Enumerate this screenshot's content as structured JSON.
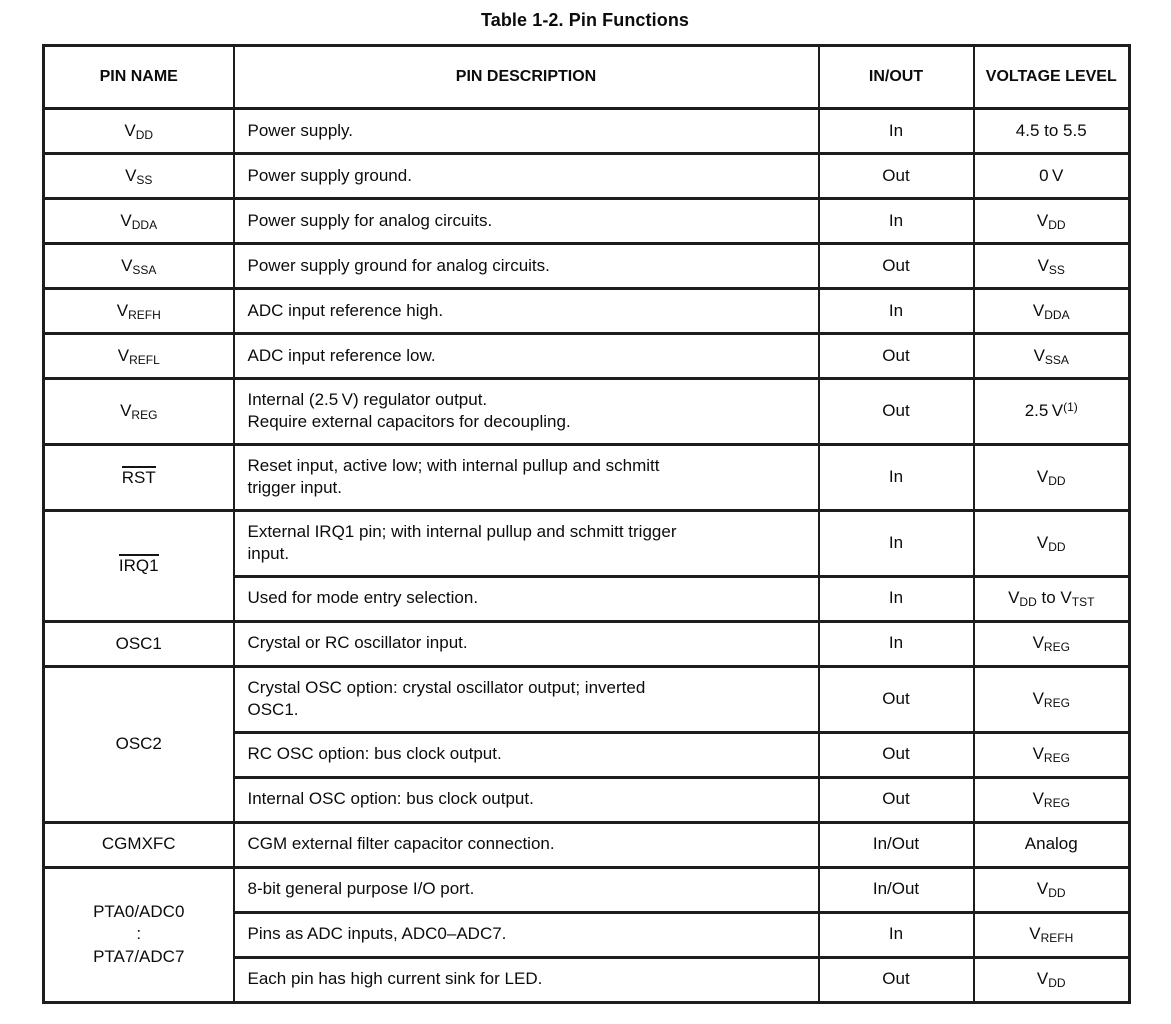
{
  "title": "Table 1-2. Pin Functions",
  "columns": [
    "PIN NAME",
    "PIN DESCRIPTION",
    "IN/OUT",
    "VOLTAGE LEVEL"
  ],
  "groups": [
    {
      "pin": [
        [
          {
            "t": "V"
          },
          {
            "t": "DD",
            "sub": true
          }
        ]
      ],
      "rows": [
        {
          "desc": "Power supply.",
          "io": "In",
          "volt": [
            {
              "t": "4.5 to 5.5"
            }
          ]
        }
      ]
    },
    {
      "pin": [
        [
          {
            "t": "V"
          },
          {
            "t": "SS",
            "sub": true
          }
        ]
      ],
      "rows": [
        {
          "desc": "Power supply ground.",
          "io": "Out",
          "volt": [
            {
              "t": "0 V"
            }
          ]
        }
      ]
    },
    {
      "pin": [
        [
          {
            "t": "V"
          },
          {
            "t": "DDA",
            "sub": true
          }
        ]
      ],
      "rows": [
        {
          "desc": "Power supply for analog circuits.",
          "io": "In",
          "volt": [
            {
              "t": "V"
            },
            {
              "t": "DD",
              "sub": true
            }
          ]
        }
      ]
    },
    {
      "pin": [
        [
          {
            "t": "V"
          },
          {
            "t": "SSA",
            "sub": true
          }
        ]
      ],
      "rows": [
        {
          "desc": "Power supply ground for analog circuits.",
          "io": "Out",
          "volt": [
            {
              "t": "V"
            },
            {
              "t": "SS",
              "sub": true
            }
          ]
        }
      ]
    },
    {
      "pin": [
        [
          {
            "t": "V"
          },
          {
            "t": "REFH",
            "sub": true
          }
        ]
      ],
      "rows": [
        {
          "desc": "ADC input reference high.",
          "io": "In",
          "volt": [
            {
              "t": "V"
            },
            {
              "t": "DDA",
              "sub": true
            }
          ]
        }
      ]
    },
    {
      "pin": [
        [
          {
            "t": "V"
          },
          {
            "t": "REFL",
            "sub": true
          }
        ]
      ],
      "rows": [
        {
          "desc": "ADC input reference low.",
          "io": "Out",
          "volt": [
            {
              "t": "V"
            },
            {
              "t": "SSA",
              "sub": true
            }
          ]
        }
      ]
    },
    {
      "pin": [
        [
          {
            "t": "V"
          },
          {
            "t": "REG",
            "sub": true
          }
        ]
      ],
      "rows": [
        {
          "desc": "Internal (2.5 V) regulator output.\nRequire external capacitors for decoupling.",
          "io": "Out",
          "volt": [
            {
              "t": "2.5 V"
            },
            {
              "t": "(1)",
              "sup": true
            }
          ]
        }
      ]
    },
    {
      "pin": [
        [
          {
            "t": "RST",
            "over": true
          }
        ]
      ],
      "rows": [
        {
          "desc": "Reset input, active low; with internal pullup and schmitt\ntrigger input.",
          "io": "In",
          "volt": [
            {
              "t": "V"
            },
            {
              "t": "DD",
              "sub": true
            }
          ]
        }
      ]
    },
    {
      "pin": [
        [
          {
            "t": "IRQ1",
            "over": true
          }
        ]
      ],
      "rows": [
        {
          "desc": "External IRQ1 pin; with internal pullup and schmitt trigger\ninput.",
          "io": "In",
          "volt": [
            {
              "t": "V"
            },
            {
              "t": "DD",
              "sub": true
            }
          ]
        },
        {
          "desc": "Used for mode entry selection.",
          "io": "In",
          "volt": [
            {
              "t": "V"
            },
            {
              "t": "DD",
              "sub": true
            },
            {
              "t": " to V"
            },
            {
              "t": "TST",
              "sub": true
            }
          ]
        }
      ]
    },
    {
      "pin": [
        [
          {
            "t": "OSC1"
          }
        ]
      ],
      "rows": [
        {
          "desc": "Crystal or RC oscillator input.",
          "io": "In",
          "volt": [
            {
              "t": "V"
            },
            {
              "t": "REG",
              "sub": true
            }
          ]
        }
      ]
    },
    {
      "pin": [
        [
          {
            "t": "OSC2"
          }
        ]
      ],
      "rows": [
        {
          "desc": "Crystal OSC option: crystal oscillator output; inverted\nOSC1.",
          "io": "Out",
          "volt": [
            {
              "t": "V"
            },
            {
              "t": "REG",
              "sub": true
            }
          ]
        },
        {
          "desc": "RC OSC option: bus clock output.",
          "io": "Out",
          "volt": [
            {
              "t": "V"
            },
            {
              "t": "REG",
              "sub": true
            }
          ]
        },
        {
          "desc": "Internal OSC option: bus clock output.",
          "io": "Out",
          "volt": [
            {
              "t": "V"
            },
            {
              "t": "REG",
              "sub": true
            }
          ]
        }
      ]
    },
    {
      "pin": [
        [
          {
            "t": "CGMXFC"
          }
        ]
      ],
      "rows": [
        {
          "desc": "CGM external filter capacitor connection.",
          "io": "In/Out",
          "volt": [
            {
              "t": "Analog"
            }
          ]
        }
      ]
    },
    {
      "pin": [
        [
          {
            "t": "PTA0/ADC0"
          }
        ],
        [
          {
            "t": ":"
          }
        ],
        [
          {
            "t": "PTA7/ADC7"
          }
        ]
      ],
      "rows": [
        {
          "desc": "8-bit general purpose I/O port.",
          "io": "In/Out",
          "volt": [
            {
              "t": "V"
            },
            {
              "t": "DD",
              "sub": true
            }
          ]
        },
        {
          "desc": "Pins as ADC inputs, ADC0–ADC7.",
          "io": "In",
          "volt": [
            {
              "t": "V"
            },
            {
              "t": "REFH",
              "sub": true
            }
          ]
        },
        {
          "desc": "Each pin has high current sink for LED.",
          "io": "Out",
          "volt": [
            {
              "t": "V"
            },
            {
              "t": "DD",
              "sub": true
            }
          ]
        }
      ]
    }
  ]
}
